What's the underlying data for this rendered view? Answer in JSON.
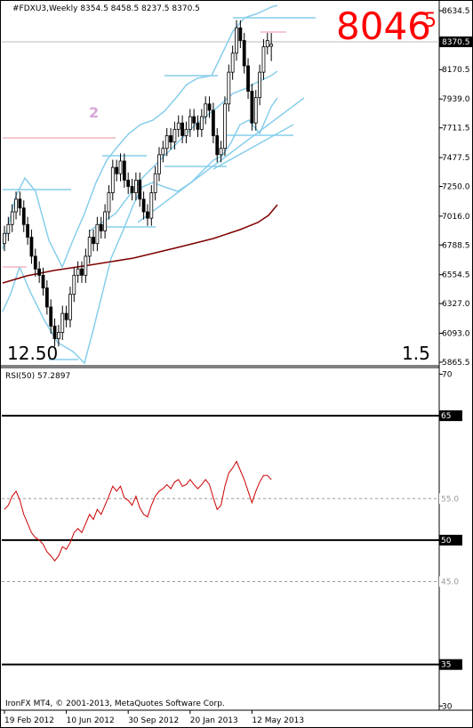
{
  "chart_data": [
    {
      "type": "candlestick",
      "title": "#FDXU3,Weekly  8354.5 8458.5 8237.5 8370.5",
      "annotations": {
        "big": "8046",
        "big_sup": "5",
        "wave": "2",
        "left": "12.50",
        "right": "1.5"
      },
      "categories": [
        "19 Feb 2012",
        null,
        null,
        null,
        null,
        null,
        null,
        null,
        null,
        null,
        null,
        null,
        null,
        null,
        null,
        null,
        "10 Jun 2012",
        null,
        null,
        null,
        null,
        null,
        null,
        null,
        null,
        null,
        null,
        null,
        null,
        null,
        null,
        null,
        "30 Sep 2012",
        null,
        null,
        null,
        null,
        null,
        null,
        null,
        null,
        null,
        null,
        null,
        null,
        null,
        null,
        null,
        "20 Jan 2013",
        null,
        null,
        null,
        null,
        null,
        null,
        null,
        null,
        null,
        null,
        null,
        null,
        null,
        null,
        null,
        "12 May 2013",
        null,
        null,
        null,
        null,
        null
      ],
      "open": [
        6800,
        6880,
        6950,
        7050,
        7150,
        7080,
        6950,
        6850,
        6700,
        6600,
        6550,
        6450,
        6300,
        6150,
        6050,
        6100,
        6250,
        6200,
        6400,
        6550,
        6600,
        6550,
        6700,
        6850,
        6800,
        6950,
        6900,
        7050,
        7200,
        7400,
        7350,
        7450,
        7300,
        7250,
        7200,
        7300,
        7150,
        7050,
        7000,
        7200,
        7350,
        7500,
        7550,
        7650,
        7600,
        7700,
        7750,
        7650,
        7700,
        7800,
        7750,
        7700,
        7800,
        7900,
        7850,
        7650,
        7500,
        7550,
        7900,
        8150,
        8300,
        8500,
        8400,
        8200,
        8000,
        7750,
        7950,
        8150,
        8350,
        8354.5
      ],
      "high": [
        6940,
        7010,
        7110,
        7210,
        7210,
        7140,
        7010,
        6910,
        6760,
        6660,
        6610,
        6510,
        6360,
        6210,
        6160,
        6310,
        6310,
        6460,
        6610,
        6660,
        6660,
        6760,
        6910,
        6910,
        7010,
        7010,
        7110,
        7260,
        7460,
        7460,
        7510,
        7510,
        7360,
        7310,
        7360,
        7360,
        7210,
        7110,
        7260,
        7410,
        7560,
        7610,
        7710,
        7710,
        7760,
        7810,
        7810,
        7760,
        7860,
        7860,
        7810,
        7860,
        7960,
        7960,
        7910,
        7710,
        7610,
        7960,
        8210,
        8360,
        8560,
        8560,
        8460,
        8260,
        8060,
        8010,
        8210,
        8410,
        8460,
        8458.5
      ],
      "low": [
        6740,
        6820,
        6890,
        6990,
        7020,
        6890,
        6790,
        6640,
        6540,
        6490,
        6390,
        6240,
        6090,
        5990,
        5990,
        6040,
        6140,
        6140,
        6340,
        6490,
        6490,
        6490,
        6640,
        6740,
        6740,
        6840,
        6840,
        6990,
        7140,
        7290,
        7290,
        7240,
        7190,
        7140,
        7140,
        7090,
        6990,
        6940,
        6940,
        7140,
        7290,
        7440,
        7490,
        7540,
        7540,
        7640,
        7590,
        7590,
        7640,
        7690,
        7640,
        7640,
        7740,
        7790,
        7590,
        7440,
        7440,
        7490,
        7840,
        8090,
        8240,
        8340,
        8140,
        7940,
        7690,
        7690,
        7890,
        8090,
        8290,
        8237.5
      ],
      "close": [
        6880,
        6950,
        7050,
        7150,
        7080,
        6950,
        6850,
        6700,
        6600,
        6550,
        6450,
        6300,
        6150,
        6050,
        6100,
        6250,
        6200,
        6400,
        6550,
        6600,
        6550,
        6700,
        6850,
        6800,
        6950,
        6900,
        7050,
        7200,
        7400,
        7350,
        7450,
        7300,
        7250,
        7200,
        7300,
        7150,
        7050,
        7000,
        7200,
        7350,
        7500,
        7550,
        7650,
        7600,
        7700,
        7750,
        7650,
        7700,
        7800,
        7750,
        7700,
        7800,
        7900,
        7850,
        7650,
        7500,
        7550,
        7900,
        8150,
        8300,
        8500,
        8400,
        8200,
        8000,
        7750,
        7950,
        8150,
        8350,
        8400,
        8370.5
      ],
      "color": "#000000",
      "ylim": [
        5844,
        8705
      ],
      "yticks": [
        8634.5,
        8402.5,
        8170.5,
        {
          "value": 7939,
          "label": "7939.0"
        },
        7711.5,
        7477.5,
        {
          "value": 7250,
          "label": "7250.0"
        },
        {
          "value": 7016,
          "label": "7016.0"
        },
        6788.5,
        6554.5,
        {
          "value": 6327,
          "label": "6327.0"
        },
        {
          "value": 6093,
          "label": "6093.0"
        },
        5865.5
      ]
    },
    {
      "type": "line",
      "title": "RSI(50) 57.2897",
      "footer": "IronFX MT4, © 2001-2013, MetaQuotes Software Corp.",
      "color": "#cc0000",
      "values": [
        53.7,
        54.2,
        55.3,
        55.9,
        54.8,
        53.1,
        52,
        50.9,
        50.3,
        50,
        49.5,
        48.6,
        48.1,
        47.5,
        48.1,
        49.2,
        48.9,
        49.7,
        50.9,
        51.4,
        50.9,
        52,
        53.1,
        52.5,
        53.7,
        53.1,
        54.2,
        55.3,
        56.5,
        55.9,
        56.5,
        55.1,
        54.8,
        54.2,
        55.3,
        53.9,
        53.1,
        52.8,
        54.2,
        55.3,
        55.9,
        56.2,
        56.7,
        56.2,
        57,
        57.3,
        56.5,
        56.7,
        57.3,
        56.7,
        56.2,
        56.7,
        57.3,
        56.7,
        55.1,
        53.7,
        54.2,
        56.5,
        58.1,
        58.7,
        59.5,
        58.4,
        57.3,
        55.9,
        54.5,
        55.9,
        57,
        57.8,
        57.8,
        57.2897
      ],
      "ylim": [
        29.6,
        70.7
      ],
      "yticks": [
        70,
        65,
        {
          "value": 55,
          "label": "55.0"
        },
        50,
        {
          "value": 45,
          "label": "45.0"
        },
        35,
        30
      ]
    }
  ]
}
